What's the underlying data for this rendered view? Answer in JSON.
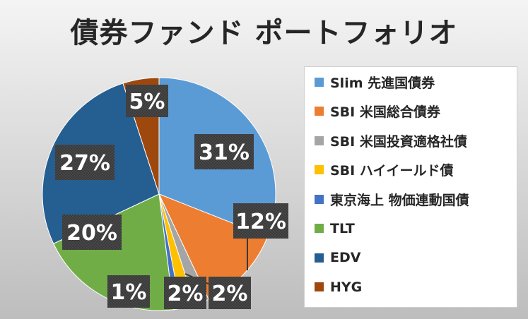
{
  "chart_data": {
    "type": "pie",
    "title": "債券ファンド ポートフォリオ",
    "categories": [
      "Slim 先進国債券",
      "SBI 米国総合債券",
      "SBI 米国投資適格社債",
      "SBI ハイイールド債",
      "東京海上 物価連動国債",
      "TLT",
      "EDV",
      "HYG"
    ],
    "values": [
      31,
      12,
      2,
      2,
      1,
      20,
      27,
      5
    ],
    "data_labels": [
      "31%",
      "12%",
      "2%",
      "2%",
      "1%",
      "20%",
      "27%",
      "5%"
    ],
    "colors": [
      "#5b9bd5",
      "#ed7d31",
      "#a5a5a5",
      "#ffc000",
      "#4472c4",
      "#70ad47",
      "#255e91",
      "#9e480e"
    ],
    "legend_position": "right"
  }
}
